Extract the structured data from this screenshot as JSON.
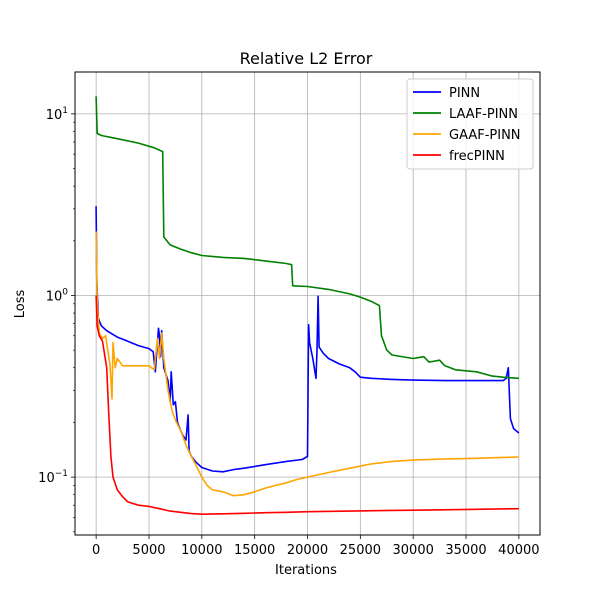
{
  "chart_data": {
    "type": "line",
    "title": "Relative L2 Error",
    "xlabel": "Iterations",
    "ylabel": "Loss",
    "xlim": [
      -2000,
      42000
    ],
    "ylim": [
      0.048,
      17
    ],
    "yscale": "log",
    "grid": true,
    "legend_position": "top-right",
    "x_ticks": [
      0,
      5000,
      10000,
      15000,
      20000,
      25000,
      30000,
      35000,
      40000
    ],
    "x_tick_labels": [
      "0",
      "5000",
      "10000",
      "15000",
      "20000",
      "25000",
      "30000",
      "35000",
      "40000"
    ],
    "y_ticks": [
      0.1,
      1,
      10
    ],
    "y_tick_labels": [
      {
        "base": "10",
        "exp": "−1"
      },
      {
        "base": "10",
        "exp": "0"
      },
      {
        "base": "10",
        "exp": "1"
      }
    ],
    "series": [
      {
        "name": "PINN",
        "color": "#0000ff",
        "points": [
          [
            0,
            3.1
          ],
          [
            60,
            1.2
          ],
          [
            200,
            0.75
          ],
          [
            500,
            0.68
          ],
          [
            1000,
            0.64
          ],
          [
            2000,
            0.59
          ],
          [
            3000,
            0.56
          ],
          [
            4000,
            0.53
          ],
          [
            5000,
            0.51
          ],
          [
            5400,
            0.49
          ],
          [
            5600,
            0.38
          ],
          [
            5800,
            0.55
          ],
          [
            5900,
            0.66
          ],
          [
            6000,
            0.6
          ],
          [
            6100,
            0.46
          ],
          [
            6200,
            0.64
          ],
          [
            6400,
            0.4
          ],
          [
            6800,
            0.34
          ],
          [
            7000,
            0.26
          ],
          [
            7100,
            0.38
          ],
          [
            7300,
            0.25
          ],
          [
            7500,
            0.26
          ],
          [
            7700,
            0.2
          ],
          [
            8000,
            0.18
          ],
          [
            8200,
            0.17
          ],
          [
            8500,
            0.16
          ],
          [
            8700,
            0.22
          ],
          [
            8800,
            0.14
          ],
          [
            9000,
            0.13
          ],
          [
            9500,
            0.12
          ],
          [
            10000,
            0.113
          ],
          [
            11000,
            0.108
          ],
          [
            12000,
            0.107
          ],
          [
            13000,
            0.11
          ],
          [
            14000,
            0.112
          ],
          [
            16000,
            0.117
          ],
          [
            18000,
            0.122
          ],
          [
            19500,
            0.125
          ],
          [
            20000,
            0.13
          ],
          [
            20100,
            0.69
          ],
          [
            20200,
            0.55
          ],
          [
            20500,
            0.45
          ],
          [
            20800,
            0.35
          ],
          [
            20900,
            0.5
          ],
          [
            21000,
            0.99
          ],
          [
            21100,
            0.52
          ],
          [
            21500,
            0.48
          ],
          [
            22000,
            0.45
          ],
          [
            23000,
            0.42
          ],
          [
            24000,
            0.4
          ],
          [
            24500,
            0.38
          ],
          [
            25000,
            0.355
          ],
          [
            26000,
            0.35
          ],
          [
            28000,
            0.345
          ],
          [
            30000,
            0.342
          ],
          [
            33000,
            0.34
          ],
          [
            36000,
            0.34
          ],
          [
            38500,
            0.34
          ],
          [
            38800,
            0.35
          ],
          [
            39000,
            0.4
          ],
          [
            39200,
            0.21
          ],
          [
            39500,
            0.185
          ],
          [
            40000,
            0.175
          ]
        ]
      },
      {
        "name": "LAAF-PINN",
        "color": "#008000",
        "points": [
          [
            0,
            12.5
          ],
          [
            100,
            7.8
          ],
          [
            500,
            7.6
          ],
          [
            2000,
            7.3
          ],
          [
            4000,
            6.9
          ],
          [
            5500,
            6.5
          ],
          [
            6300,
            6.2
          ],
          [
            6400,
            2.1
          ],
          [
            7000,
            1.9
          ],
          [
            8000,
            1.8
          ],
          [
            9000,
            1.72
          ],
          [
            10000,
            1.66
          ],
          [
            12000,
            1.62
          ],
          [
            14000,
            1.6
          ],
          [
            16000,
            1.55
          ],
          [
            18000,
            1.5
          ],
          [
            18500,
            1.48
          ],
          [
            18600,
            1.13
          ],
          [
            20000,
            1.12
          ],
          [
            22000,
            1.08
          ],
          [
            24000,
            1.02
          ],
          [
            25000,
            0.98
          ],
          [
            26000,
            0.93
          ],
          [
            26800,
            0.88
          ],
          [
            27000,
            0.6
          ],
          [
            27500,
            0.5
          ],
          [
            28000,
            0.47
          ],
          [
            30000,
            0.45
          ],
          [
            31000,
            0.46
          ],
          [
            31500,
            0.43
          ],
          [
            32500,
            0.44
          ],
          [
            33000,
            0.41
          ],
          [
            34000,
            0.39
          ],
          [
            36000,
            0.38
          ],
          [
            37500,
            0.36
          ],
          [
            38500,
            0.355
          ],
          [
            40000,
            0.35
          ]
        ]
      },
      {
        "name": "GAAF-PINN",
        "color": "#ffa500",
        "points": [
          [
            0,
            2.25
          ],
          [
            100,
            0.9
          ],
          [
            300,
            0.62
          ],
          [
            600,
            0.58
          ],
          [
            900,
            0.6
          ],
          [
            1100,
            0.5
          ],
          [
            1300,
            0.42
          ],
          [
            1500,
            0.27
          ],
          [
            1600,
            0.55
          ],
          [
            1800,
            0.4
          ],
          [
            2000,
            0.45
          ],
          [
            2500,
            0.41
          ],
          [
            3500,
            0.41
          ],
          [
            5000,
            0.41
          ],
          [
            5500,
            0.39
          ],
          [
            5800,
            0.58
          ],
          [
            6000,
            0.45
          ],
          [
            6200,
            0.62
          ],
          [
            6400,
            0.45
          ],
          [
            6800,
            0.3
          ],
          [
            7200,
            0.23
          ],
          [
            7600,
            0.2
          ],
          [
            8000,
            0.18
          ],
          [
            8500,
            0.15
          ],
          [
            9000,
            0.13
          ],
          [
            9500,
            0.115
          ],
          [
            10000,
            0.1
          ],
          [
            10500,
            0.09
          ],
          [
            11000,
            0.085
          ],
          [
            12000,
            0.083
          ],
          [
            13000,
            0.079
          ],
          [
            14000,
            0.08
          ],
          [
            15000,
            0.083
          ],
          [
            16000,
            0.087
          ],
          [
            17000,
            0.09
          ],
          [
            18000,
            0.093
          ],
          [
            19000,
            0.097
          ],
          [
            20000,
            0.1
          ],
          [
            22000,
            0.106
          ],
          [
            24000,
            0.112
          ],
          [
            26000,
            0.118
          ],
          [
            28000,
            0.122
          ],
          [
            30000,
            0.124
          ],
          [
            33000,
            0.126
          ],
          [
            36000,
            0.127
          ],
          [
            38000,
            0.128
          ],
          [
            40000,
            0.129
          ]
        ]
      },
      {
        "name": "frecPINN",
        "color": "#ff0000",
        "points": [
          [
            0,
            1.0
          ],
          [
            100,
            0.68
          ],
          [
            300,
            0.6
          ],
          [
            600,
            0.56
          ],
          [
            1000,
            0.4
          ],
          [
            1200,
            0.22
          ],
          [
            1400,
            0.13
          ],
          [
            1600,
            0.1
          ],
          [
            2000,
            0.085
          ],
          [
            2500,
            0.078
          ],
          [
            3000,
            0.073
          ],
          [
            4000,
            0.07
          ],
          [
            5000,
            0.069
          ],
          [
            6000,
            0.067
          ],
          [
            7000,
            0.065
          ],
          [
            8000,
            0.064
          ],
          [
            9000,
            0.063
          ],
          [
            10000,
            0.0625
          ],
          [
            12000,
            0.0628
          ],
          [
            14000,
            0.0632
          ],
          [
            16000,
            0.0637
          ],
          [
            18000,
            0.064
          ],
          [
            20000,
            0.0645
          ],
          [
            24000,
            0.065
          ],
          [
            28000,
            0.0656
          ],
          [
            32000,
            0.066
          ],
          [
            36000,
            0.0665
          ],
          [
            40000,
            0.067
          ]
        ]
      }
    ]
  }
}
